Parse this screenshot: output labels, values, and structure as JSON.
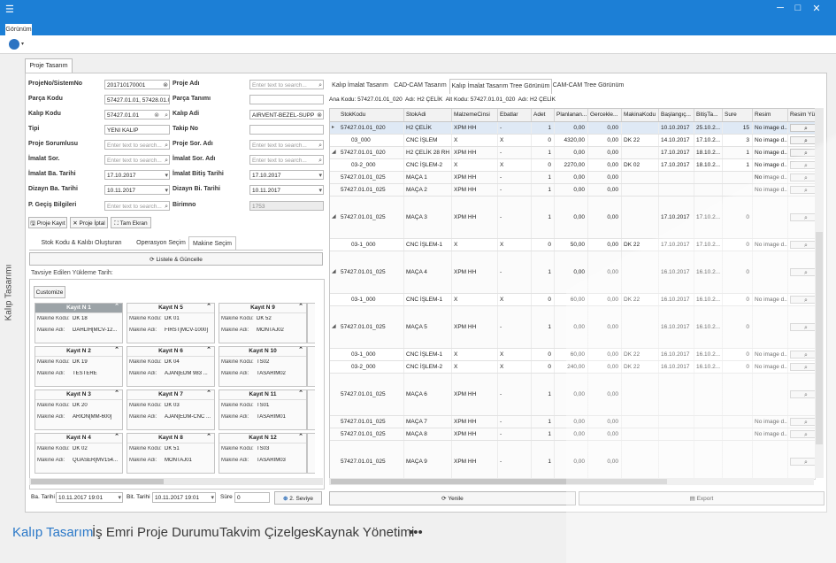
{
  "window": {
    "minimize": "─",
    "maximize": "□",
    "close": "✕"
  },
  "ribbon": {
    "tab": "Görünüm"
  },
  "sidebar": {
    "label": "Kalıp Tasarımı"
  },
  "doc_tab": "Proje Tasarım",
  "form": {
    "proje_no_label": "ProjeNo/SistemNo",
    "proje_no_value": "201710170001",
    "proje_adi_label": "Proje Adı",
    "proje_adi_ph": "Enter text to search...",
    "parca_kodu_label": "Parça Kodu",
    "parca_kodu_value": "57427.01.01, 57428.01.0",
    "parca_tanimi_label": "Parça Tanımı",
    "kalip_kodu_label": "Kalıp Kodu",
    "kalip_kodu_value": "57427.01.01",
    "kalip_adi_label": "Kalıp Adi",
    "kalip_adi_value": "AIRVENT-BEZEL-SUPP",
    "tipi_label": "Tipi",
    "tipi_value": "YENI KALIP",
    "takip_no_label": "Takip No",
    "proje_sorumlusu_label": "Proje Sorumlusu",
    "proje_sorumlusu_ph": "Enter text to search...",
    "proje_sor_adi_label": "Proje Sor. Adı",
    "proje_sor_adi_ph": "Enter text to search...",
    "imalat_sor_label": "İmalat Sor.",
    "imalat_sor_ph": "Enter text to search...",
    "imalat_sor_adi_label": "İmalat Sor. Adı",
    "imalat_sor_adi_ph": "Enter text to search...",
    "imalat_ba_label": "İmalat Ba. Tarihi",
    "imalat_ba_value": "17.10.2017",
    "imalat_bitis_label": "İmalat Bitiş Tarihi",
    "imalat_bitis_value": "17.10.2017",
    "dizayn_ba_label": "Dizayn Ba. Tarihi",
    "dizayn_ba_value": "10.11.2017",
    "dizayn_bi_label": "Dizayn Bi. Tarihi",
    "dizayn_bi_value": "10.11.2017",
    "p_gecis_label": "P. Geçiş Bilgileri",
    "p_gecis_ph": "Enter text to search...",
    "birimno_label": "Birimno",
    "birimno_value": "1753"
  },
  "actions": {
    "kayit": "Proje Kayıt",
    "iptal": "Proje İptal",
    "tam_ekran": "Tam Ekran"
  },
  "left_tabs": [
    "Stok Kodu & Kalıbı Oluşturan Parçalar",
    "Operasyon Seçim",
    "Makine Seçim"
  ],
  "listele": "Listele & Güncelle",
  "tavsiye_label": "Tavsiye Edilen Yükleme Tarih:",
  "customize": "Customize",
  "card_labels": {
    "kod": "Makine Kodu:",
    "ad": "Makine Adı:"
  },
  "cards": [
    {
      "title": "Kayıt N 1",
      "kod": "DK 18",
      "ad": "DAHLİH[MCV-12..."
    },
    {
      "title": "Kayıt N 5",
      "kod": "DK 01",
      "ad": "FIRST[MCV-1000]"
    },
    {
      "title": "Kayıt N 9",
      "kod": "DK 52",
      "ad": "MONTAJ02"
    },
    {
      "title": "Kayıt N 2",
      "kod": "DK 19",
      "ad": "TESTERE"
    },
    {
      "title": "Kayıt N 6",
      "kod": "DK 04",
      "ad": "AJAN[EDM 983 ..."
    },
    {
      "title": "Kayıt N 10",
      "kod": "TS02",
      "ad": "TASARIM02"
    },
    {
      "title": "Kayıt N 3",
      "kod": "DK 20",
      "ad": "ARİON[MM-600]"
    },
    {
      "title": "Kayıt N 7",
      "kod": "DK 03",
      "ad": "AJAN[EDM-CNC ..."
    },
    {
      "title": "Kayıt N 11",
      "kod": "TS01",
      "ad": "TASARIM01"
    },
    {
      "title": "Kayıt N 4",
      "kod": "DK 02",
      "ad": "QUASER[MV154..."
    },
    {
      "title": "Kayıt N 8",
      "kod": "DK 51",
      "ad": "MONTAJ01"
    },
    {
      "title": "Kayıt N 12",
      "kod": "TS03",
      "ad": "TASARIM03"
    }
  ],
  "bottom_filter": {
    "ba_label": "Ba. Tarihi",
    "ba_value": "10.11.2017 19:01",
    "bit_label": "Bit. Tarihi",
    "bit_value": "10.11.2017 19:01",
    "sure_label": "Süre",
    "sure_value": "0",
    "seviye": "2. Seviye"
  },
  "right_tabs": [
    "Kalıp İmalat Tasarım",
    "CAD-CAM Tasarım",
    "Kalıp İmalat Tasarım Tree Görünüm",
    "CAM-CAM Tree Görünüm"
  ],
  "info": {
    "ana_label": "Ana Kodu:",
    "ana": "57427.01.01_020",
    "adi_label": "Adı:",
    "adi": "H2 ÇELİK",
    "alt_label": "Alt Kodu:",
    "alt": "57427.01.01_020",
    "adi2_label": "Adı:",
    "adi2": "H2 ÇELİK"
  },
  "grid": {
    "columns": [
      "StokKodu",
      "StokAdi",
      "MalzemeCinsi",
      "Ebatlar",
      "Adet",
      "Planlanan...",
      "Gercekle...",
      "MakinaKodu",
      "Başlangıç...",
      "BitişTa...",
      "Sure",
      "Resim",
      "Resim Yükle"
    ],
    "rows": [
      {
        "kind": "parent",
        "tree": "▸",
        "stok": "57427.01.01_020",
        "adi": "H2 ÇELİK",
        "mal": "XPM HH",
        "ebat": "-",
        "adet": "1",
        "plan": "0,00",
        "gerc": "0,00",
        "mak": "",
        "bas": "10.10.2017",
        "bit": "25.10.2...",
        "sure": "15",
        "resim": "No image d...",
        "thumb": "",
        "sel": true
      },
      {
        "kind": "child",
        "tree": "",
        "stok": "03_000",
        "adi": "CNC İŞLEM",
        "mal": "X",
        "ebat": "X",
        "adet": "0",
        "plan": "4320,00",
        "gerc": "0,00",
        "mak": "DK 22",
        "bas": "14.10.2017",
        "bit": "17.10.2...",
        "sure": "3",
        "resim": "No image d...",
        "thumb": ""
      },
      {
        "kind": "parent",
        "tree": "◢",
        "stok": "57427.01.01_020",
        "adi": "H2 ÇELİK 28 RH",
        "mal": "XPM HH",
        "ebat": "-",
        "adet": "1",
        "plan": "0,00",
        "gerc": "0,00",
        "mak": "",
        "bas": "17.10.2017",
        "bit": "18.10.2...",
        "sure": "1",
        "resim": "No image d...",
        "thumb": ""
      },
      {
        "kind": "child",
        "tree": "",
        "stok": "03-2_000",
        "adi": "CNC İŞLEM-2",
        "mal": "X",
        "ebat": "X",
        "adet": "0",
        "plan": "2270,00",
        "gerc": "0,00",
        "mak": "DK 02",
        "bas": "17.10.2017",
        "bit": "18.10.2...",
        "sure": "1",
        "resim": "No image d...",
        "thumb": ""
      },
      {
        "kind": "parent",
        "tree": "",
        "stok": "57427.01.01_025",
        "adi": "MAÇA 1",
        "mal": "XPM HH",
        "ebat": "-",
        "adet": "1",
        "plan": "0,00",
        "gerc": "0,00",
        "mak": "",
        "bas": "",
        "bit": "",
        "sure": "",
        "resim": "No image d...",
        "thumb": ""
      },
      {
        "kind": "parent",
        "tree": "",
        "stok": "57427.01.01_025",
        "adi": "MAÇA 2",
        "mal": "XPM HH",
        "ebat": "-",
        "adet": "1",
        "plan": "0,00",
        "gerc": "0,00",
        "mak": "",
        "bas": "",
        "bit": "",
        "sure": "",
        "resim": "No image d...",
        "thumb": ""
      },
      {
        "kind": "parent",
        "tree": "◢",
        "stok": "57427.01.01_025",
        "adi": "MAÇA 3",
        "mal": "XPM HH",
        "ebat": "-",
        "adet": "1",
        "plan": "0,00",
        "gerc": "0,00",
        "mak": "",
        "bas": "17.10.2017",
        "bit": "17.10.2...",
        "sure": "0",
        "resim": "",
        "thumb": "#1a9fd8"
      },
      {
        "kind": "child",
        "tree": "",
        "stok": "03-1_000",
        "adi": "CNC İŞLEM-1",
        "mal": "X",
        "ebat": "X",
        "adet": "0",
        "plan": "50,00",
        "gerc": "0,00",
        "mak": "DK 22",
        "bas": "17.10.2017",
        "bit": "17.10.2...",
        "sure": "0",
        "resim": "No image d...",
        "thumb": ""
      },
      {
        "kind": "parent",
        "tree": "◢",
        "stok": "57427.01.01_025",
        "adi": "MAÇA 4",
        "mal": "XPM HH",
        "ebat": "-",
        "adet": "1",
        "plan": "0,00",
        "gerc": "0,00",
        "mak": "",
        "bas": "16.10.2017",
        "bit": "16.10.2...",
        "sure": "0",
        "resim": "",
        "thumb": "#8c9aa8"
      },
      {
        "kind": "child",
        "tree": "",
        "stok": "03-1_000",
        "adi": "CNC İŞLEM-1",
        "mal": "X",
        "ebat": "X",
        "adet": "0",
        "plan": "60,00",
        "gerc": "0,00",
        "mak": "DK 22",
        "bas": "16.10.2017",
        "bit": "16.10.2...",
        "sure": "0",
        "resim": "No image d...",
        "thumb": ""
      },
      {
        "kind": "parent",
        "tree": "◢",
        "stok": "57427.01.01_025",
        "adi": "MAÇA 5",
        "mal": "XPM HH",
        "ebat": "-",
        "adet": "1",
        "plan": "0,00",
        "gerc": "0,00",
        "mak": "",
        "bas": "16.10.2017",
        "bit": "16.10.2...",
        "sure": "0",
        "resim": "",
        "thumb": "#1a8fd0"
      },
      {
        "kind": "child",
        "tree": "",
        "stok": "03-1_000",
        "adi": "CNC İŞLEM-1",
        "mal": "X",
        "ebat": "X",
        "adet": "0",
        "plan": "60,00",
        "gerc": "0,00",
        "mak": "DK 22",
        "bas": "16.10.2017",
        "bit": "16.10.2...",
        "sure": "0",
        "resim": "No image d...",
        "thumb": ""
      },
      {
        "kind": "child",
        "tree": "",
        "stok": "03-2_000",
        "adi": "CNC İŞLEM-2",
        "mal": "X",
        "ebat": "X",
        "adet": "0",
        "plan": "240,00",
        "gerc": "0,00",
        "mak": "DK 22",
        "bas": "16.10.2017",
        "bit": "16.10.2...",
        "sure": "0",
        "resim": "No image d...",
        "thumb": ""
      },
      {
        "kind": "parent",
        "tree": "",
        "stok": "57427.01.01_025",
        "adi": "MAÇA 6",
        "mal": "XPM HH",
        "ebat": "-",
        "adet": "1",
        "plan": "0,00",
        "gerc": "0,00",
        "mak": "",
        "bas": "",
        "bit": "",
        "sure": "",
        "resim": "",
        "thumb": "#b8d41e"
      },
      {
        "kind": "parent",
        "tree": "",
        "stok": "57427.01.01_025",
        "adi": "MAÇA 7",
        "mal": "XPM HH",
        "ebat": "-",
        "adet": "1",
        "plan": "0,00",
        "gerc": "0,00",
        "mak": "",
        "bas": "",
        "bit": "",
        "sure": "",
        "resim": "No image d...",
        "thumb": ""
      },
      {
        "kind": "parent",
        "tree": "",
        "stok": "57427.01.01_025",
        "adi": "MAÇA 8",
        "mal": "XPM HH",
        "ebat": "-",
        "adet": "1",
        "plan": "0,00",
        "gerc": "0,00",
        "mak": "",
        "bas": "",
        "bit": "",
        "sure": "",
        "resim": "No image d...",
        "thumb": ""
      },
      {
        "kind": "parent",
        "tree": "",
        "stok": "57427.01.01_025",
        "adi": "MAÇA 9",
        "mal": "XPM HH",
        "ebat": "-",
        "adet": "1",
        "plan": "0,00",
        "gerc": "0,00",
        "mak": "",
        "bas": "",
        "bit": "",
        "sure": "",
        "resim": "",
        "thumb": "#a8d8e8"
      }
    ]
  },
  "grid_actions": {
    "yenile": "Yenile",
    "export": "Export"
  },
  "bottom_nav": [
    "Kalıp Tasarım",
    "İş Emri",
    "Proje Durumu",
    "Takvim Çizelgesi",
    "Kaynak Yönetimi",
    "•••"
  ],
  "colors": {
    "accent": "#1c7fd6",
    "nav_active": "#2a78c8"
  }
}
